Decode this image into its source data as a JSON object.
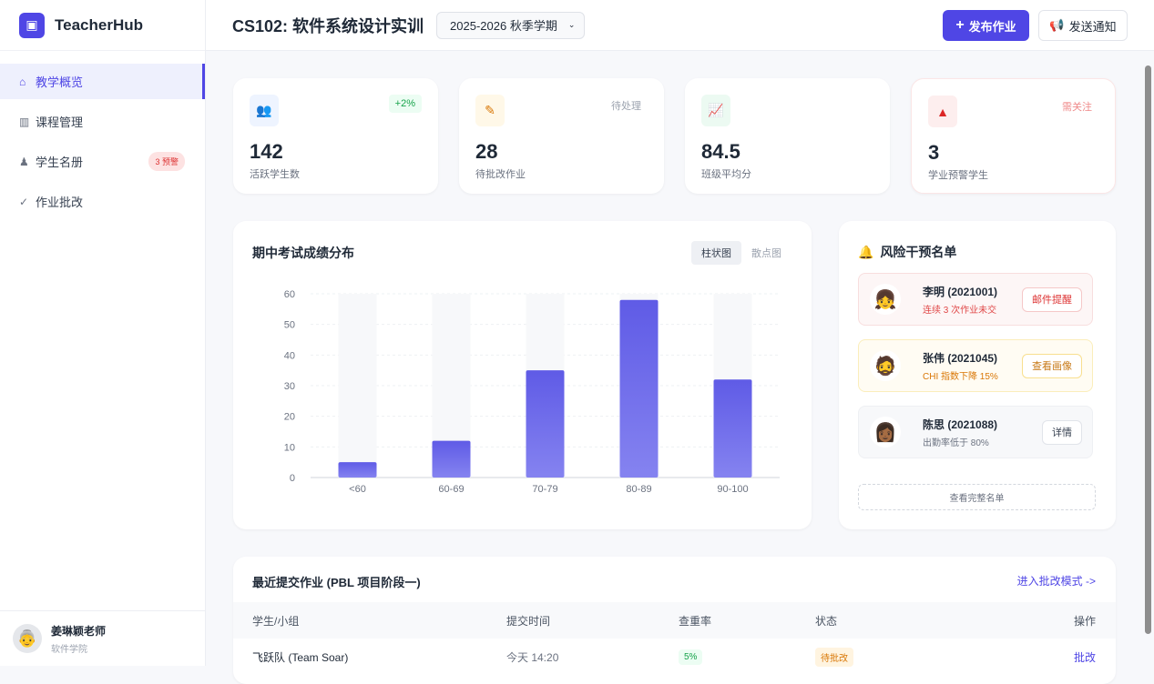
{
  "app": {
    "name": "TeacherHub"
  },
  "sidebar": {
    "items": [
      {
        "label": "教学概览",
        "icon": "home-icon",
        "active": true
      },
      {
        "label": "课程管理",
        "icon": "book-icon"
      },
      {
        "label": "学生名册",
        "icon": "graduate-icon",
        "badge": "3 预警"
      },
      {
        "label": "作业批改",
        "icon": "check-double-icon"
      }
    ],
    "user": {
      "name": "姜琳颖老师",
      "dept": "软件学院"
    }
  },
  "header": {
    "title": "CS102: 软件系统设计实训",
    "term": "2025-2026 秋季学期",
    "publish_label": "发布作业",
    "notify_label": "发送通知"
  },
  "stats": [
    {
      "value": "142",
      "label": "活跃学生数",
      "tag": "+2%",
      "icon": "users-icon",
      "color": "#3b6fd8"
    },
    {
      "value": "28",
      "label": "待批改作业",
      "tag": "待处理",
      "icon": "edit-file-icon",
      "color": "#d97706"
    },
    {
      "value": "84.5",
      "label": "班级平均分",
      "tag": "",
      "icon": "chart-line-icon",
      "color": "#16a34a"
    },
    {
      "value": "3",
      "label": "学业预警学生",
      "tag": "需关注",
      "icon": "warning-icon",
      "color": "#dc2626"
    }
  ],
  "chart_section": {
    "title": "期中考试成绩分布",
    "toggle": [
      "柱状图",
      "散点图"
    ],
    "active": "柱状图"
  },
  "chart_data": {
    "type": "bar",
    "categories": [
      "<60",
      "60-69",
      "70-79",
      "80-89",
      "90-100"
    ],
    "values": [
      5,
      12,
      35,
      58,
      32
    ],
    "ylim": [
      0,
      60
    ],
    "yticks": [
      0,
      10,
      20,
      30,
      40,
      50,
      60
    ],
    "grid": true,
    "color": "#6366f1"
  },
  "risk": {
    "title": "风险干预名单",
    "items": [
      {
        "name": "李明 (2021001)",
        "desc": "连续 3 次作业未交",
        "action": "邮件提醒",
        "level": "high"
      },
      {
        "name": "张伟 (2021045)",
        "desc": "CHI 指数下降 15%",
        "action": "查看画像",
        "level": "medium"
      },
      {
        "name": "陈思 (2021088)",
        "desc": "出勤率低于 80%",
        "action": "详情",
        "level": "low"
      }
    ],
    "more": "查看完整名单"
  },
  "submissions": {
    "title": "最近提交作业 (PBL 项目阶段一)",
    "link": "进入批改模式 ->",
    "columns": [
      "学生/小组",
      "提交时间",
      "查重率",
      "状态",
      "操作"
    ],
    "rows": [
      {
        "student": "飞跃队 (Team Soar)",
        "time": "今天 14:20",
        "similarity": "5%",
        "status": "待批改",
        "action": "批改"
      }
    ]
  }
}
